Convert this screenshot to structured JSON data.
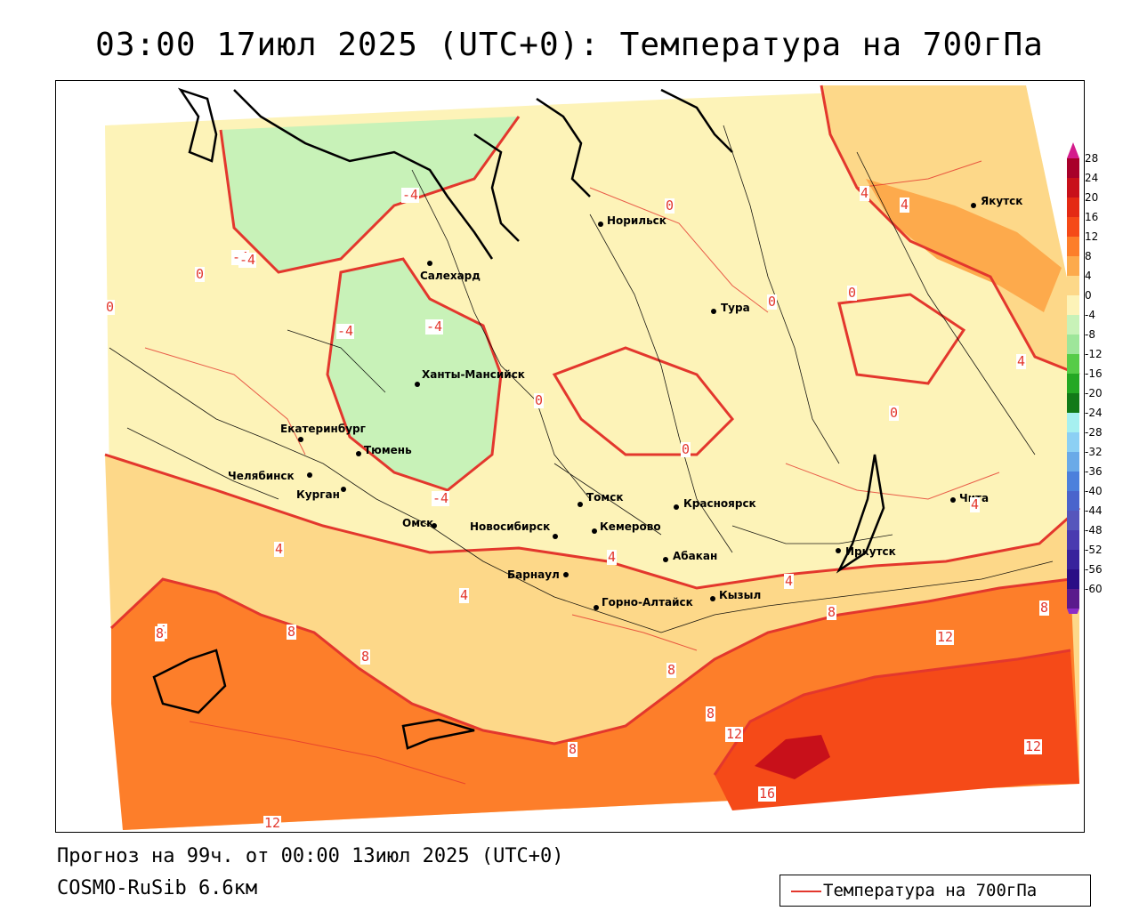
{
  "title": "03:00 17июл 2025 (UTC+0): Температура на 700гПа",
  "footer": {
    "forecast": "Прогноз на 99ч. от 00:00 13июл 2025 (UTC+0)",
    "model": "COSMO-RuSib 6.6км"
  },
  "legend": {
    "label": "Температура на 700гПа",
    "color": "#e3372d"
  },
  "colorbar": {
    "ticks": [
      "28",
      "24",
      "20",
      "16",
      "12",
      "8",
      "4",
      "0",
      "-4",
      "-8",
      "-12",
      "-16",
      "-20",
      "-24",
      "-28",
      "-32",
      "-36",
      "-40",
      "-44",
      "-48",
      "-52",
      "-56",
      "-60"
    ],
    "colors": [
      "#a8002a",
      "#c8101a",
      "#e42a14",
      "#f54a18",
      "#fd7e2a",
      "#fdaa4c",
      "#fdd889",
      "#fdf3b8",
      "#c8f2b8",
      "#9ee69a",
      "#56cc48",
      "#24a824",
      "#127a18",
      "#a6f0f0",
      "#8cd0f4",
      "#6aaae8",
      "#4c80dc",
      "#4a64cc",
      "#5656bc",
      "#4a3ab0",
      "#38229c",
      "#2a0e86",
      "#5a1a8c"
    ]
  },
  "cities": [
    {
      "name": "Якутск"
    },
    {
      "name": "Норильск"
    },
    {
      "name": "Салехард"
    },
    {
      "name": "Тура"
    },
    {
      "name": "Ханты-Мансийск"
    },
    {
      "name": "Екатеринбург"
    },
    {
      "name": "Тюмень"
    },
    {
      "name": "Челябинск"
    },
    {
      "name": "Курган"
    },
    {
      "name": "Омск"
    },
    {
      "name": "Новосибирск"
    },
    {
      "name": "Томск"
    },
    {
      "name": "Кемерово"
    },
    {
      "name": "Красноярск"
    },
    {
      "name": "Абакан"
    },
    {
      "name": "Барнаул"
    },
    {
      "name": "Горно-Алтайск"
    },
    {
      "name": "Кызыл"
    },
    {
      "name": "Иркутск"
    },
    {
      "name": "Чита"
    }
  ],
  "contour_labels": [
    "-4",
    "-4",
    "-4",
    "-4",
    "-4",
    "-4",
    "0",
    "0",
    "0",
    "0",
    "0",
    "0",
    "0",
    "0",
    "4",
    "4",
    "4",
    "4",
    "4",
    "4",
    "4",
    "4",
    "4",
    "8",
    "8",
    "8",
    "8",
    "8",
    "8",
    "8",
    "8",
    "12",
    "12",
    "12",
    "12",
    "16"
  ]
}
